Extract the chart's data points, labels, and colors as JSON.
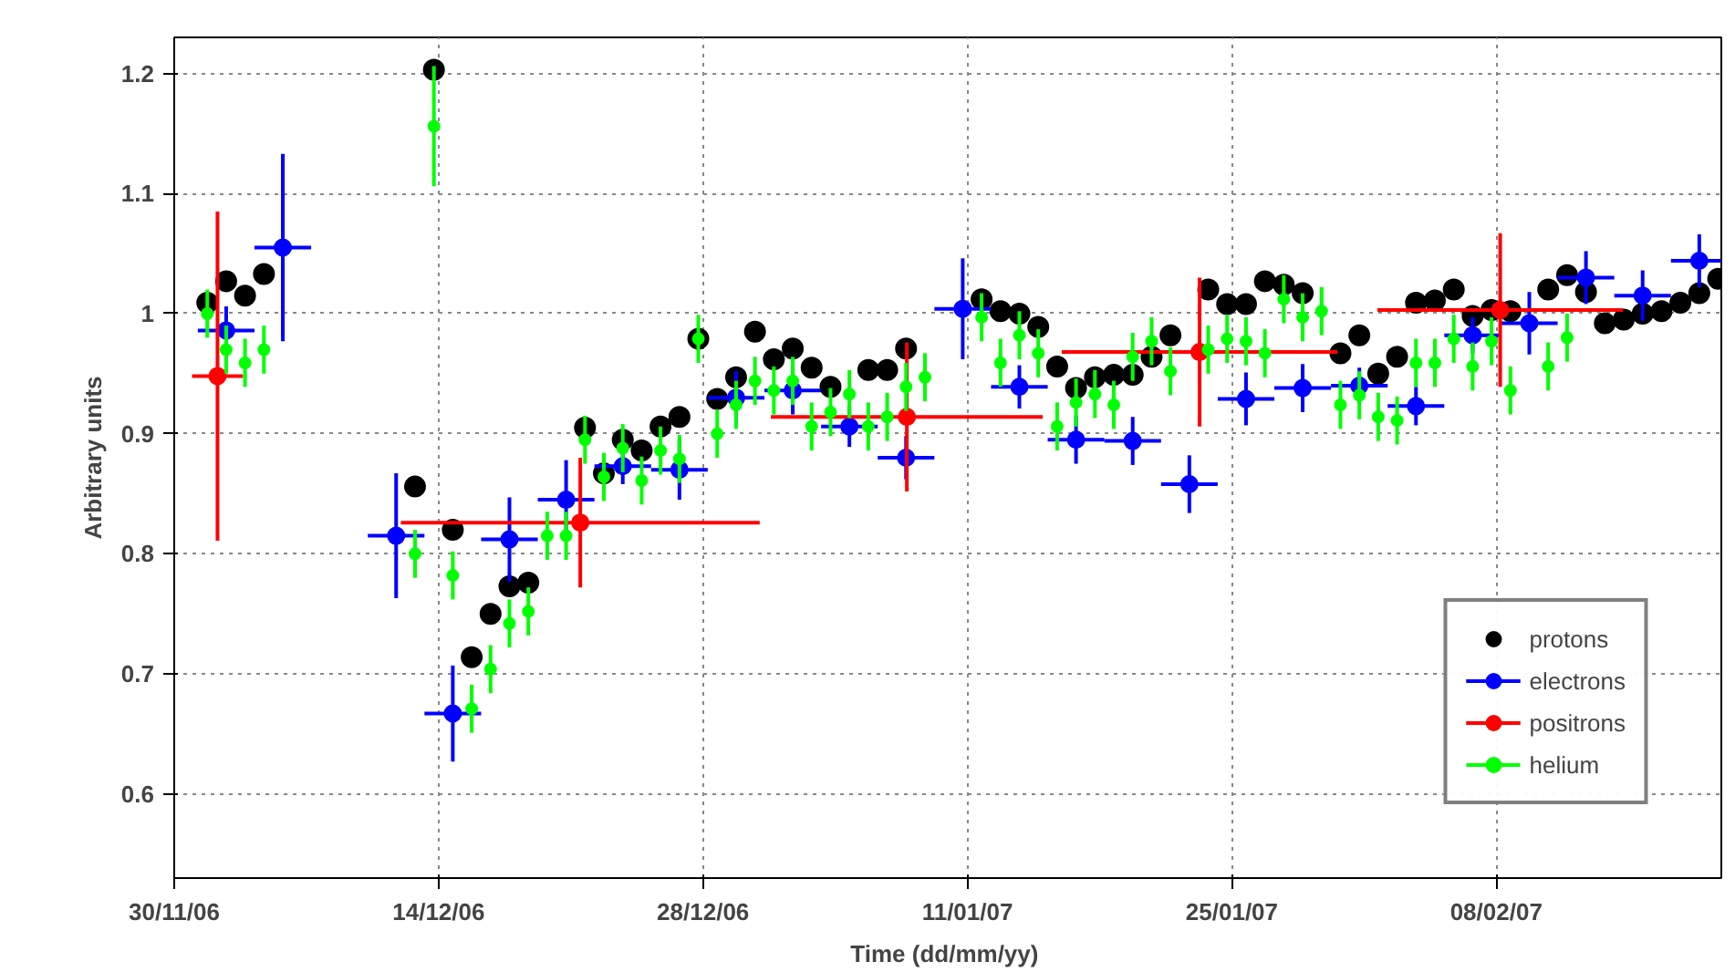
{
  "chart_data": {
    "type": "scatter",
    "xlabel": "Time  (dd/mm/yy)",
    "ylabel": "Arbitrary units",
    "xlim": [
      "2006-11-30",
      "2007-02-19T22:00"
    ],
    "ylim": [
      0.53,
      1.23
    ],
    "xticks": [
      {
        "value": "2006-11-30",
        "label": "30/11/06"
      },
      {
        "value": "2006-12-14",
        "label": "14/12/06"
      },
      {
        "value": "2006-12-28",
        "label": "28/12/06"
      },
      {
        "value": "2007-01-11",
        "label": "11/01/07"
      },
      {
        "value": "2007-01-25",
        "label": "25/01/07"
      },
      {
        "value": "2007-02-08",
        "label": "08/02/07"
      }
    ],
    "yticks": [
      0.6,
      0.7,
      0.8,
      0.9,
      1,
      1.1,
      1.2
    ],
    "grid": true,
    "legend": "bottom right",
    "marker": "circle",
    "series": [
      {
        "name": "protons",
        "color": "#000000",
        "x": [
          "2006-12-01T18:00",
          "2006-12-02T18:00",
          "2006-12-03T18:00",
          "2006-12-04T18:00",
          "2006-12-12T18:00",
          "2006-12-13T18:00",
          "2006-12-14T18:00",
          "2006-12-15T18:00",
          "2006-12-16T18:00",
          "2006-12-17T18:00",
          "2006-12-18T18:00",
          "2006-12-21T18:00",
          "2006-12-22T18:00",
          "2006-12-23T18:00",
          "2006-12-24T18:00",
          "2006-12-25T18:00",
          "2006-12-26T18:00",
          "2006-12-27T18:00",
          "2006-12-28T18:00",
          "2006-12-29T18:00",
          "2006-12-30T18:00",
          "2006-12-31T18:00",
          "2007-01-01T18:00",
          "2007-01-02T18:00",
          "2007-01-03T18:00",
          "2007-01-05T18:00",
          "2007-01-06T18:00",
          "2007-01-07T18:00",
          "2007-01-11T18:00",
          "2007-01-12T18:00",
          "2007-01-13T18:00",
          "2007-01-14T18:00",
          "2007-01-15T18:00",
          "2007-01-16T18:00",
          "2007-01-17T18:00",
          "2007-01-18T18:00",
          "2007-01-19T18:00",
          "2007-01-20T18:00",
          "2007-01-21T18:00",
          "2007-01-23T18:00",
          "2007-01-24T18:00",
          "2007-01-25T18:00",
          "2007-01-26T18:00",
          "2007-01-27T18:00",
          "2007-01-28T18:00",
          "2007-01-30T18:00",
          "2007-01-31T18:00",
          "2007-02-01T18:00",
          "2007-02-02T18:00",
          "2007-02-03T18:00",
          "2007-02-04T18:00",
          "2007-02-05T18:00",
          "2007-02-06T18:00",
          "2007-02-07T18:00",
          "2007-02-08T18:00",
          "2007-02-10T18:00",
          "2007-02-11T18:00",
          "2007-02-12T18:00",
          "2007-02-13T18:00",
          "2007-02-14T18:00",
          "2007-02-15T18:00",
          "2007-02-16T18:00",
          "2007-02-17T18:00",
          "2007-02-18T18:00",
          "2007-02-19T18:00"
        ],
        "values": [
          1.009,
          1.027,
          1.015,
          1.033,
          0.856,
          1.203,
          0.82,
          0.714,
          0.75,
          0.773,
          0.776,
          0.905,
          0.867,
          0.895,
          0.886,
          0.906,
          0.914,
          0.979,
          0.929,
          0.947,
          0.985,
          0.962,
          0.971,
          0.955,
          0.939,
          0.953,
          0.953,
          0.971,
          1.012,
          1.002,
          1.0,
          0.989,
          0.956,
          0.938,
          0.947,
          0.949,
          0.949,
          0.964,
          0.982,
          1.02,
          1.008,
          1.008,
          1.027,
          1.024,
          1.017,
          0.967,
          0.982,
          0.95,
          0.964,
          1.009,
          1.011,
          1.02,
          0.998,
          1.003,
          1.002,
          1.02,
          1.032,
          1.018,
          0.992,
          0.995,
          1.0,
          1.002,
          1.009,
          1.017,
          1.029
        ]
      },
      {
        "name": "electrons",
        "color": "#0000ff",
        "x": [
          "2006-12-02T18:00",
          "2006-12-05T18:00",
          "2006-12-11T18:00",
          "2006-12-14T18:00",
          "2006-12-17T18:00",
          "2006-12-20T18:00",
          "2006-12-23T18:00",
          "2006-12-26T18:00",
          "2006-12-29T18:00",
          "2007-01-01T18:00",
          "2007-01-04T18:00",
          "2007-01-07T18:00",
          "2007-01-10T18:00",
          "2007-01-13T18:00",
          "2007-01-16T18:00",
          "2007-01-19T18:00",
          "2007-01-22T18:00",
          "2007-01-25T18:00",
          "2007-01-28T18:00",
          "2007-01-31T18:00",
          "2007-02-03T18:00",
          "2007-02-06T18:00",
          "2007-02-09T18:00",
          "2007-02-12T18:00",
          "2007-02-15T18:00",
          "2007-02-18T18:00"
        ],
        "values": [
          0.986,
          1.055,
          0.815,
          0.667,
          0.812,
          0.845,
          0.873,
          0.87,
          0.93,
          0.936,
          0.906,
          0.88,
          1.004,
          0.939,
          0.895,
          0.894,
          0.858,
          0.929,
          0.938,
          0.94,
          0.923,
          0.982,
          0.992,
          1.03,
          1.015,
          1.044
        ],
        "errors": [
          0.02,
          0.078,
          0.052,
          0.04,
          0.035,
          0.033,
          0.015,
          0.025,
          0.022,
          0.02,
          0.017,
          0.018,
          0.042,
          0.018,
          0.02,
          0.02,
          0.024,
          0.022,
          0.02,
          0.015,
          0.016,
          0.015,
          0.026,
          0.022,
          0.021,
          0.022
        ],
        "xerrors": [
          1.5,
          1.5,
          1.5,
          1.5,
          1.5,
          1.5,
          1.5,
          1.5,
          1.5,
          1.5,
          1.5,
          1.5,
          1.5,
          1.5,
          1.5,
          1.5,
          1.5,
          1.5,
          1.5,
          1.5,
          1.5,
          1.5,
          1.5,
          1.5,
          1.5,
          1.5
        ]
      },
      {
        "name": "positrons",
        "color": "#ff0000",
        "x": [
          "2006-12-02T07:00",
          "2006-12-21T12:00",
          "2007-01-07T19:00",
          "2007-01-23T07:00",
          "2007-02-08T05:00"
        ],
        "values": [
          0.948,
          0.826,
          0.914,
          0.968,
          1.003
        ],
        "errors": [
          0.137,
          0.054,
          0.062,
          0.062,
          0.064
        ],
        "xerrors": [
          1.35,
          9.5,
          7.2,
          7.3,
          6.5
        ]
      },
      {
        "name": "helium",
        "color": "#00ff00",
        "x": [
          "2006-12-01T18:00",
          "2006-12-02T18:00",
          "2006-12-03T18:00",
          "2006-12-04T18:00",
          "2006-12-12T18:00",
          "2006-12-13T18:00",
          "2006-12-14T18:00",
          "2006-12-15T18:00",
          "2006-12-16T18:00",
          "2006-12-17T18:00",
          "2006-12-18T18:00",
          "2006-12-19T18:00",
          "2006-12-20T18:00",
          "2006-12-21T18:00",
          "2006-12-22T18:00",
          "2006-12-23T18:00",
          "2006-12-24T18:00",
          "2006-12-25T18:00",
          "2006-12-26T18:00",
          "2006-12-27T18:00",
          "2006-12-28T18:00",
          "2006-12-29T18:00",
          "2006-12-30T18:00",
          "2006-12-31T18:00",
          "2007-01-01T18:00",
          "2007-01-02T18:00",
          "2007-01-03T18:00",
          "2007-01-04T18:00",
          "2007-01-05T18:00",
          "2007-01-06T18:00",
          "2007-01-07T18:00",
          "2007-01-08T18:00",
          "2007-01-11T18:00",
          "2007-01-12T18:00",
          "2007-01-13T18:00",
          "2007-01-14T18:00",
          "2007-01-15T18:00",
          "2007-01-16T18:00",
          "2007-01-17T18:00",
          "2007-01-18T18:00",
          "2007-01-19T18:00",
          "2007-01-20T18:00",
          "2007-01-21T18:00",
          "2007-01-23T18:00",
          "2007-01-24T18:00",
          "2007-01-25T18:00",
          "2007-01-26T18:00",
          "2007-01-27T18:00",
          "2007-01-28T18:00",
          "2007-01-29T18:00",
          "2007-01-30T18:00",
          "2007-01-31T18:00",
          "2007-02-01T18:00",
          "2007-02-02T18:00",
          "2007-02-03T18:00",
          "2007-02-04T18:00",
          "2007-02-05T18:00",
          "2007-02-06T18:00",
          "2007-02-07T18:00",
          "2007-02-08T18:00",
          "2007-02-10T18:00",
          "2007-02-11T18:00"
        ],
        "values": [
          1.0,
          0.97,
          0.959,
          0.97,
          0.8,
          1.156,
          0.782,
          0.671,
          0.704,
          0.742,
          0.752,
          0.815,
          0.815,
          0.895,
          0.864,
          0.888,
          0.861,
          0.886,
          0.879,
          0.979,
          0.9,
          0.924,
          0.944,
          0.936,
          0.944,
          0.906,
          0.918,
          0.933,
          0.906,
          0.914,
          0.939,
          0.947,
          0.997,
          0.959,
          0.982,
          0.967,
          0.906,
          0.926,
          0.933,
          0.924,
          0.964,
          0.977,
          0.952,
          0.97,
          0.979,
          0.977,
          0.967,
          1.012,
          0.997,
          1.002,
          0.924,
          0.932,
          0.914,
          0.911,
          0.959,
          0.959,
          0.979,
          0.956,
          0.977,
          0.936,
          0.956,
          0.98
        ],
        "errors": [
          0.02,
          0.02,
          0.02,
          0.02,
          0.02,
          0.05,
          0.02,
          0.02,
          0.02,
          0.02,
          0.02,
          0.02,
          0.02,
          0.02,
          0.02,
          0.02,
          0.02,
          0.02,
          0.02,
          0.02,
          0.02,
          0.02,
          0.02,
          0.02,
          0.02,
          0.02,
          0.02,
          0.02,
          0.02,
          0.02,
          0.02,
          0.02,
          0.02,
          0.02,
          0.02,
          0.02,
          0.02,
          0.02,
          0.02,
          0.02,
          0.02,
          0.02,
          0.02,
          0.02,
          0.02,
          0.02,
          0.02,
          0.02,
          0.02,
          0.02,
          0.02,
          0.02,
          0.02,
          0.02,
          0.02,
          0.02,
          0.02,
          0.02,
          0.02,
          0.02,
          0.02,
          0.02
        ]
      }
    ]
  }
}
